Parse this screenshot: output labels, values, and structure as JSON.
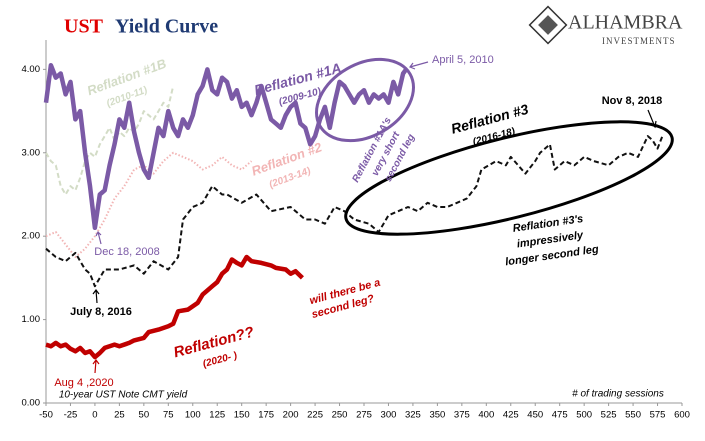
{
  "chart_data": {
    "type": "line",
    "title_prefix": "UST",
    "title": "Yield Curve",
    "logo": {
      "name": "ALHAMBRA",
      "sub": "INVESTMENTS"
    },
    "xlim": [
      -50,
      600
    ],
    "xticks": [
      -50,
      -25,
      0,
      25,
      50,
      75,
      100,
      125,
      150,
      175,
      200,
      225,
      250,
      275,
      300,
      325,
      350,
      375,
      400,
      425,
      450,
      475,
      500,
      525,
      550,
      575,
      600
    ],
    "ylim": [
      0,
      4.4
    ],
    "yticks": [
      {
        "value": 0,
        "label": "0.00"
      },
      {
        "value": 1,
        "label": "1.00"
      },
      {
        "value": 2,
        "label": "2.00"
      },
      {
        "value": 3,
        "label": "3.00"
      },
      {
        "value": 4,
        "label": "4.00"
      }
    ],
    "series": [
      {
        "name": "Reflation #1A",
        "color": "#7b5aa6",
        "style": "thick",
        "x": [
          -50,
          -45,
          -40,
          -35,
          -30,
          -25,
          -20,
          -15,
          -10,
          -5,
          0,
          5,
          10,
          15,
          20,
          25,
          30,
          35,
          40,
          45,
          50,
          55,
          60,
          65,
          70,
          75,
          80,
          85,
          90,
          95,
          100,
          105,
          110,
          115,
          120,
          125,
          130,
          135,
          140,
          145,
          150,
          155,
          160,
          165,
          170,
          175,
          180,
          185,
          190,
          195,
          200,
          205,
          210,
          215,
          220,
          225,
          230,
          235,
          240,
          245,
          250,
          255,
          260,
          265,
          270,
          275,
          280,
          285,
          290,
          295,
          300,
          305,
          310,
          315,
          318
        ],
        "values": [
          3.6,
          4.05,
          3.9,
          3.95,
          3.7,
          3.85,
          3.4,
          3.5,
          3.0,
          2.6,
          2.1,
          2.5,
          2.55,
          2.85,
          3.1,
          3.4,
          3.3,
          3.6,
          3.25,
          3.0,
          2.8,
          2.7,
          3.0,
          3.3,
          3.2,
          3.5,
          3.3,
          3.2,
          3.4,
          3.3,
          3.45,
          3.7,
          3.8,
          4.0,
          3.75,
          3.7,
          3.9,
          3.85,
          3.65,
          3.75,
          3.55,
          3.6,
          3.45,
          3.6,
          3.8,
          3.6,
          3.4,
          3.35,
          3.3,
          3.45,
          3.55,
          3.6,
          3.35,
          3.3,
          3.1,
          3.2,
          3.4,
          3.55,
          3.3,
          3.6,
          3.85,
          3.8,
          3.7,
          3.6,
          3.7,
          3.75,
          3.6,
          3.7,
          3.65,
          3.7,
          3.6,
          3.85,
          3.7,
          3.95,
          4.0
        ]
      },
      {
        "name": "Reflation #1B",
        "color": "#d3dcc6",
        "style": "dashed",
        "x": [
          -50,
          -45,
          -40,
          -35,
          -30,
          -25,
          -20,
          -15,
          -10,
          -5,
          0,
          5,
          10,
          15,
          20,
          25,
          30,
          35,
          40,
          45,
          50,
          55,
          60,
          65,
          70,
          75,
          80
        ],
        "values": [
          3.0,
          2.9,
          2.85,
          2.6,
          2.5,
          2.6,
          2.55,
          2.7,
          2.9,
          3.0,
          2.95,
          3.1,
          3.2,
          3.3,
          3.15,
          3.25,
          3.2,
          3.3,
          3.25,
          3.35,
          3.5,
          3.45,
          3.4,
          3.5,
          3.6,
          3.55,
          3.8
        ]
      },
      {
        "name": "Reflation #2",
        "color": "#f2b5b5",
        "style": "dotted",
        "x": [
          -50,
          -40,
          -30,
          -20,
          -10,
          0,
          10,
          20,
          30,
          40,
          50,
          60,
          70,
          80,
          90,
          100,
          110,
          120,
          130,
          140,
          150,
          160
        ],
        "values": [
          2.0,
          2.05,
          1.9,
          1.75,
          1.85,
          2.0,
          2.2,
          2.45,
          2.6,
          2.8,
          2.85,
          2.75,
          2.9,
          3.0,
          2.95,
          2.9,
          2.8,
          2.85,
          2.95,
          2.85,
          2.8,
          2.9
        ]
      },
      {
        "name": "Reflation #3",
        "color": "#111111",
        "style": "dashed",
        "x": [
          -50,
          -40,
          -30,
          -20,
          -10,
          -5,
          0,
          5,
          10,
          25,
          40,
          50,
          60,
          75,
          85,
          90,
          100,
          110,
          120,
          130,
          135,
          150,
          165,
          180,
          200,
          215,
          225,
          235,
          245,
          255,
          265,
          280,
          290,
          300,
          310,
          320,
          330,
          340,
          350,
          360,
          370,
          380,
          390,
          395,
          410,
          420,
          425,
          440,
          450,
          455,
          465,
          470,
          480,
          490,
          500,
          510,
          525,
          535,
          545,
          555,
          565,
          570,
          575,
          580
        ],
        "values": [
          1.85,
          1.75,
          1.7,
          1.8,
          1.6,
          1.55,
          1.4,
          1.5,
          1.6,
          1.6,
          1.65,
          1.55,
          1.7,
          1.6,
          1.75,
          2.2,
          2.35,
          2.4,
          2.6,
          2.5,
          2.5,
          2.4,
          2.5,
          2.3,
          2.35,
          2.2,
          2.2,
          2.15,
          2.35,
          2.3,
          2.2,
          2.15,
          2.05,
          2.25,
          2.3,
          2.35,
          2.3,
          2.4,
          2.35,
          2.35,
          2.4,
          2.45,
          2.6,
          2.8,
          2.9,
          2.85,
          2.95,
          2.75,
          2.9,
          3.0,
          3.1,
          2.8,
          2.9,
          2.85,
          2.95,
          2.9,
          2.85,
          2.95,
          3.0,
          2.95,
          3.2,
          3.15,
          3.05,
          3.2
        ]
      },
      {
        "name": "Reflation??",
        "color": "#c00000",
        "style": "thick",
        "x": [
          -50,
          -45,
          -40,
          -35,
          -30,
          -25,
          -20,
          -15,
          -10,
          -5,
          0,
          5,
          10,
          20,
          25,
          35,
          40,
          50,
          55,
          65,
          75,
          80,
          85,
          95,
          105,
          110,
          115,
          120,
          125,
          130,
          135,
          140,
          145,
          150,
          155,
          160,
          170,
          180,
          185,
          195,
          200,
          205,
          212
        ],
        "values": [
          0.7,
          0.68,
          0.72,
          0.68,
          0.7,
          0.65,
          0.62,
          0.66,
          0.6,
          0.62,
          0.55,
          0.6,
          0.66,
          0.7,
          0.68,
          0.72,
          0.75,
          0.78,
          0.85,
          0.88,
          0.92,
          0.95,
          1.1,
          1.12,
          1.2,
          1.3,
          1.35,
          1.4,
          1.45,
          1.55,
          1.6,
          1.72,
          1.68,
          1.65,
          1.75,
          1.7,
          1.68,
          1.65,
          1.62,
          1.6,
          1.55,
          1.58,
          1.5
        ]
      }
    ],
    "annotations": [
      "(2009-10)",
      "(2010-11)",
      "(2013-14)",
      "(2016-18)",
      "(2020- )",
      "April 5, 2010",
      "Reflation #1A's",
      "very short",
      "second leg",
      "Nov 8, 2018",
      "Dec 18, 2008",
      "Reflation #3's",
      "impressively",
      "longer second leg",
      "July 8, 2016",
      "will there be a",
      "second leg?",
      "Aug 4 ,2020",
      "10-year UST Note CMT yield",
      "# of trading sessions"
    ]
  }
}
